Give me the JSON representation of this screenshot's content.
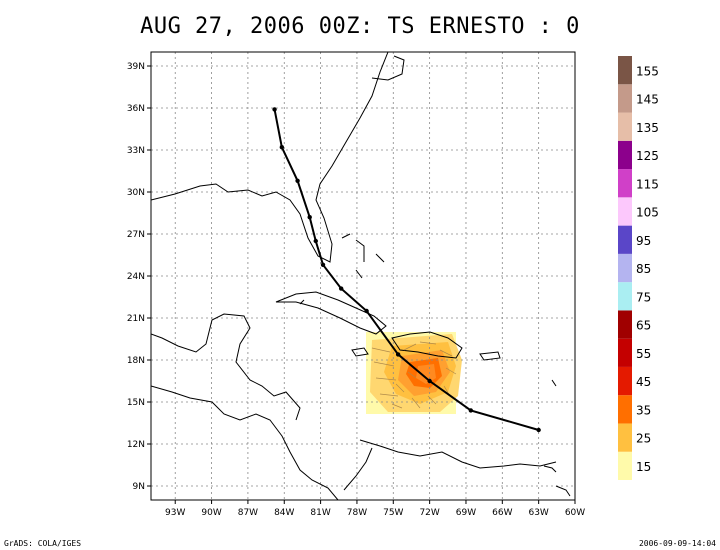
{
  "title": "AUG 27, 2006 00Z: TS ERNESTO  : 0",
  "footer": {
    "left": "GrADS: COLA/IGES",
    "right": "2006-09-09-14:04"
  },
  "axes": {
    "x_ticks": [
      "93W",
      "90W",
      "87W",
      "84W",
      "81W",
      "78W",
      "75W",
      "72W",
      "69W",
      "66W",
      "63W",
      "60W"
    ],
    "y_ticks": [
      "9N",
      "12N",
      "15N",
      "18N",
      "21N",
      "24N",
      "27N",
      "30N",
      "33N",
      "36N",
      "39N"
    ]
  },
  "legend": {
    "labels": [
      "15",
      "25",
      "35",
      "45",
      "55",
      "65",
      "75",
      "85",
      "95",
      "105",
      "115",
      "125",
      "135",
      "145",
      "155"
    ],
    "colors": [
      "#fffaaa",
      "#ffc040",
      "#ff6f00",
      "#e41a00",
      "#c40000",
      "#a00000",
      "#aaeef2",
      "#b4b4f0",
      "#5a46c8",
      "#fcc8fc",
      "#d040c8",
      "#8c008c",
      "#e6bea8",
      "#c49a8a",
      "#7a5546"
    ]
  },
  "track": {
    "lon": [
      -63.0,
      -68.6,
      -72.0,
      -74.6,
      -77.2,
      -79.3,
      -80.8,
      -81.4,
      -81.9,
      -82.9,
      -84.2,
      -84.8
    ],
    "lat": [
      13.0,
      14.4,
      16.5,
      18.4,
      21.5,
      23.1,
      24.8,
      26.5,
      28.2,
      30.8,
      33.2,
      35.9
    ]
  },
  "map": {
    "lon_min": -95,
    "lon_max": -60,
    "lat_min": 8,
    "lat_max": 40
  }
}
